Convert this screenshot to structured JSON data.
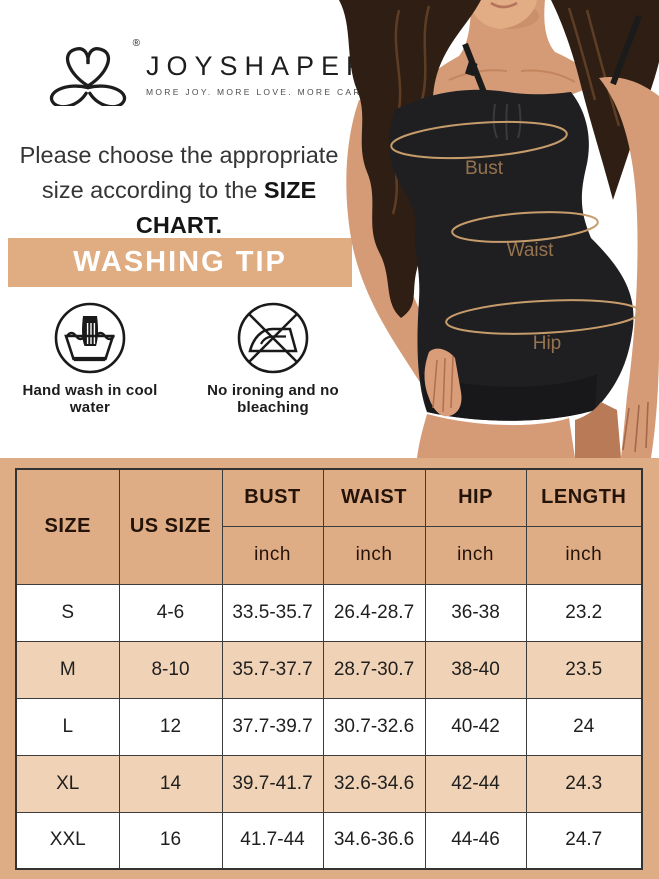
{
  "brand": {
    "name": "JOYSHAPER",
    "tagline": "MORE JOY. MORE LOVE. MORE CARE",
    "registered": "®"
  },
  "intro": {
    "line1": "Please choose the appropriate",
    "line2_prefix": "size according to the ",
    "line2_bold": "SIZE CHART."
  },
  "washing_tip": {
    "title": "WASHING TIP",
    "items": [
      {
        "icon": "hand-wash-icon",
        "label": "Hand wash in cool water"
      },
      {
        "icon": "no-iron-icon",
        "label": "No ironing and no bleaching"
      }
    ]
  },
  "figure": {
    "labels": {
      "bust": "Bust",
      "waist": "Waist",
      "hip": "Hip"
    }
  },
  "size_chart": {
    "columns": [
      "SIZE",
      "US SIZE",
      "BUST",
      "WAIST",
      "HIP",
      "LENGTH"
    ],
    "unit_label": "inch",
    "rows": [
      {
        "size": "S",
        "us_size": "4-6",
        "bust": "33.5-35.7",
        "waist": "26.4-28.7",
        "hip": "36-38",
        "length": "23.2"
      },
      {
        "size": "M",
        "us_size": "8-10",
        "bust": "35.7-37.7",
        "waist": "28.7-30.7",
        "hip": "38-40",
        "length": "23.5"
      },
      {
        "size": "L",
        "us_size": "12",
        "bust": "37.7-39.7",
        "waist": "30.7-32.6",
        "hip": "40-42",
        "length": "24"
      },
      {
        "size": "XL",
        "us_size": "14",
        "bust": "39.7-41.7",
        "waist": "32.6-34.6",
        "hip": "42-44",
        "length": "24.3"
      },
      {
        "size": "XXL",
        "us_size": "16",
        "bust": "41.7-44",
        "waist": "34.6-36.6",
        "hip": "44-46",
        "length": "24.7"
      }
    ]
  },
  "colors": {
    "banner_bg": "#E0AC82",
    "section_bg": "#DFAD85",
    "row_alt_bg": "#F0D2B6",
    "table_border": "#3C3C3C",
    "measure_ring": "#C79C6B",
    "measure_label": "#8F6B47"
  }
}
